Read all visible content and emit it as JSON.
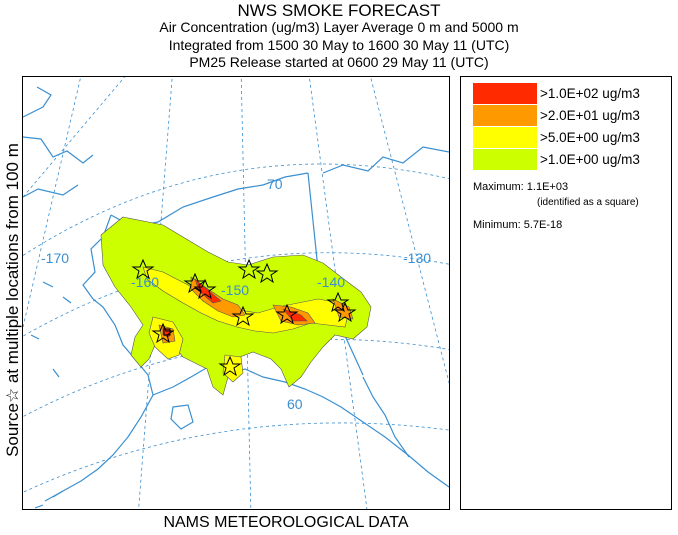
{
  "title": {
    "line1": "NWS SMOKE FORECAST",
    "line2": "Air Concentration (ug/m3) Layer Average    0 m and  5000 m",
    "line3": "Integrated from 1500 30 May to 1600 30 May 11 (UTC)",
    "line4": "PM25 Release started at 0600 29 May 11 (UTC)"
  },
  "side_label": "Source☆  at multiple locations    from   100 m",
  "bottom_label": "NAMS METEOROLOGICAL DATA",
  "legend": {
    "items": [
      {
        "label": ">1.0E+02 ug/m3",
        "color": "#ff2a00"
      },
      {
        "label": ">2.0E+01 ug/m3",
        "color": "#ff9900"
      },
      {
        "label": ">5.0E+00 ug/m3",
        "color": "#ffff00"
      },
      {
        "label": ">1.0E+00 ug/m3",
        "color": "#ccff00"
      }
    ],
    "maximum": "Maximum: 1.1E+03",
    "maximum_note": "(identified as a square)",
    "minimum": "Minimum: 5.7E-18"
  },
  "map": {
    "grid_labels": {
      "lon_170": "-170",
      "lon_160": "-160",
      "lon_150": "-150",
      "lon_140": "-140",
      "lon_130": "-130",
      "lat_70": "70",
      "lat_60": "60"
    },
    "colors": {
      "coast": "#3a8fd0",
      "grid": "#3a8fd0",
      "label": "#3a8fd0",
      "source_marker": "#000000"
    }
  }
}
